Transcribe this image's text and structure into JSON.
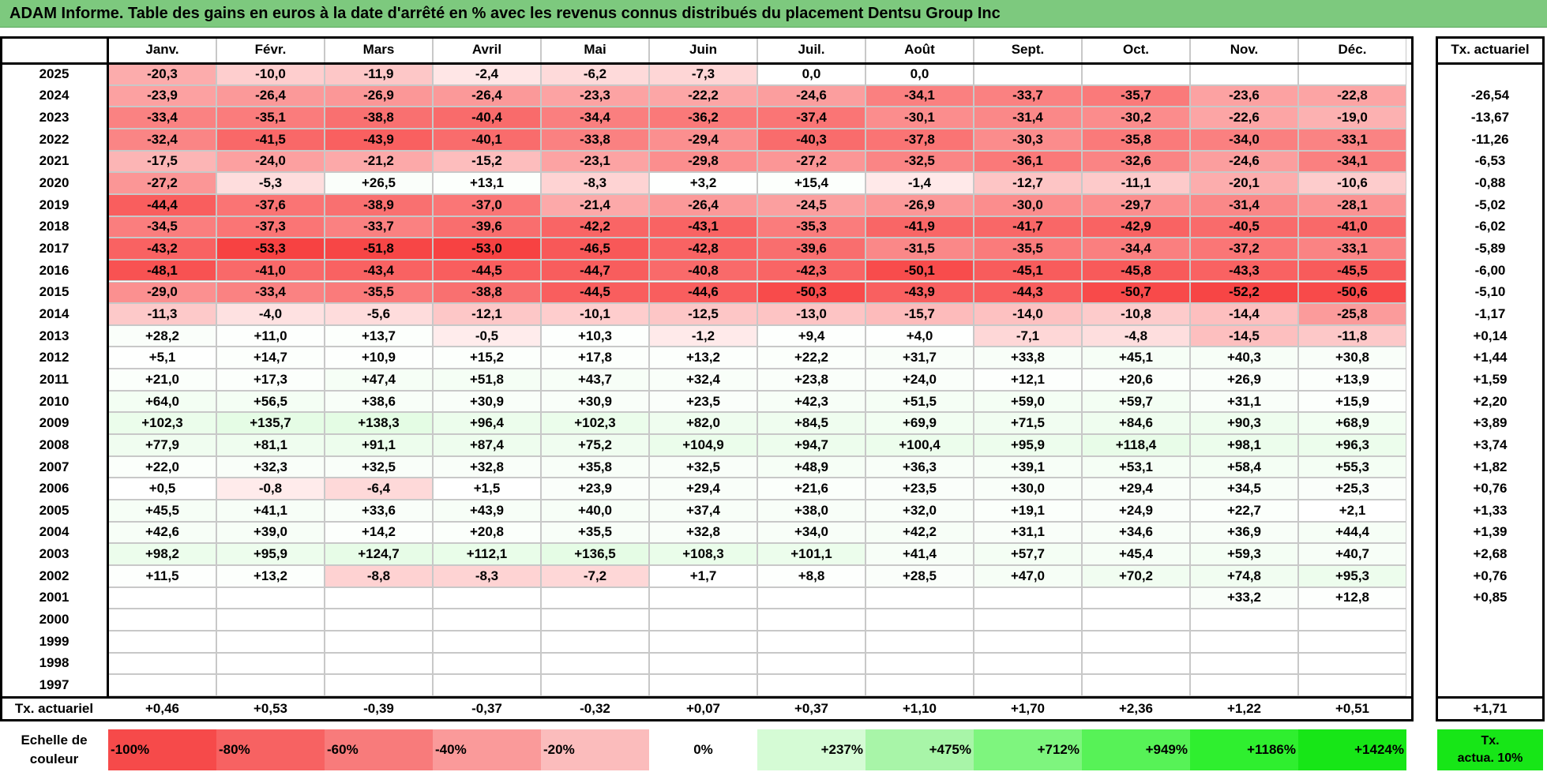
{
  "title": "ADAM Informe. Table des gains en euros à la date d'arrêté en % avec les revenus connus distribués du placement Dentsu Group Inc",
  "chart_data": {
    "type": "heatmap",
    "months": [
      "Janv.",
      "Févr.",
      "Mars",
      "Avril",
      "Mai",
      "Juin",
      "Juil.",
      "Août",
      "Sept.",
      "Oct.",
      "Nov.",
      "Déc."
    ],
    "annual_header": "Tx. actuariel",
    "rows": [
      {
        "year": "2025",
        "values": [
          "-20,3",
          "-10,0",
          "-11,9",
          "-2,4",
          "-6,2",
          "-7,3",
          "0,0",
          "0,0",
          "",
          "",
          "",
          ""
        ],
        "annual": ""
      },
      {
        "year": "2024",
        "values": [
          "-23,9",
          "-26,4",
          "-26,9",
          "-26,4",
          "-23,3",
          "-22,2",
          "-24,6",
          "-34,1",
          "-33,7",
          "-35,7",
          "-23,6",
          "-22,8"
        ],
        "annual": "-26,54"
      },
      {
        "year": "2023",
        "values": [
          "-33,4",
          "-35,1",
          "-38,8",
          "-40,4",
          "-34,4",
          "-36,2",
          "-37,4",
          "-30,1",
          "-31,4",
          "-30,2",
          "-22,6",
          "-19,0"
        ],
        "annual": "-13,67"
      },
      {
        "year": "2022",
        "values": [
          "-32,4",
          "-41,5",
          "-43,9",
          "-40,1",
          "-33,8",
          "-29,4",
          "-40,3",
          "-37,8",
          "-30,3",
          "-35,8",
          "-34,0",
          "-33,1"
        ],
        "annual": "-11,26"
      },
      {
        "year": "2021",
        "values": [
          "-17,5",
          "-24,0",
          "-21,2",
          "-15,2",
          "-23,1",
          "-29,8",
          "-27,2",
          "-32,5",
          "-36,1",
          "-32,6",
          "-24,6",
          "-34,1"
        ],
        "annual": "-6,53"
      },
      {
        "year": "2020",
        "values": [
          "-27,2",
          "-5,3",
          "+26,5",
          "+13,1",
          "-8,3",
          "+3,2",
          "+15,4",
          "-1,4",
          "-12,7",
          "-11,1",
          "-20,1",
          "-10,6"
        ],
        "annual": "-0,88"
      },
      {
        "year": "2019",
        "values": [
          "-44,4",
          "-37,6",
          "-38,9",
          "-37,0",
          "-21,4",
          "-26,4",
          "-24,5",
          "-26,9",
          "-30,0",
          "-29,7",
          "-31,4",
          "-28,1"
        ],
        "annual": "-5,02"
      },
      {
        "year": "2018",
        "values": [
          "-34,5",
          "-37,3",
          "-33,7",
          "-39,6",
          "-42,2",
          "-43,1",
          "-35,3",
          "-41,9",
          "-41,7",
          "-42,9",
          "-40,5",
          "-41,0"
        ],
        "annual": "-6,02"
      },
      {
        "year": "2017",
        "values": [
          "-43,2",
          "-53,3",
          "-51,8",
          "-53,0",
          "-46,5",
          "-42,8",
          "-39,6",
          "-31,5",
          "-35,5",
          "-34,4",
          "-37,2",
          "-33,1"
        ],
        "annual": "-5,89"
      },
      {
        "year": "2016",
        "values": [
          "-48,1",
          "-41,0",
          "-43,4",
          "-44,5",
          "-44,7",
          "-40,8",
          "-42,3",
          "-50,1",
          "-45,1",
          "-45,8",
          "-43,3",
          "-45,5"
        ],
        "annual": "-6,00"
      },
      {
        "year": "2015",
        "values": [
          "-29,0",
          "-33,4",
          "-35,5",
          "-38,8",
          "-44,5",
          "-44,6",
          "-50,3",
          "-43,9",
          "-44,3",
          "-50,7",
          "-52,2",
          "-50,6"
        ],
        "annual": "-5,10"
      },
      {
        "year": "2014",
        "values": [
          "-11,3",
          "-4,0",
          "-5,6",
          "-12,1",
          "-10,1",
          "-12,5",
          "-13,0",
          "-15,7",
          "-14,0",
          "-10,8",
          "-14,4",
          "-25,8"
        ],
        "annual": "-1,17"
      },
      {
        "year": "2013",
        "values": [
          "+28,2",
          "+11,0",
          "+13,7",
          "-0,5",
          "+10,3",
          "-1,2",
          "+9,4",
          "+4,0",
          "-7,1",
          "-4,8",
          "-14,5",
          "-11,8"
        ],
        "annual": "+0,14"
      },
      {
        "year": "2012",
        "values": [
          "+5,1",
          "+14,7",
          "+10,9",
          "+15,2",
          "+17,8",
          "+13,2",
          "+22,2",
          "+31,7",
          "+33,8",
          "+45,1",
          "+40,3",
          "+30,8"
        ],
        "annual": "+1,44"
      },
      {
        "year": "2011",
        "values": [
          "+21,0",
          "+17,3",
          "+47,4",
          "+51,8",
          "+43,7",
          "+32,4",
          "+23,8",
          "+24,0",
          "+12,1",
          "+20,6",
          "+26,9",
          "+13,9"
        ],
        "annual": "+1,59"
      },
      {
        "year": "2010",
        "values": [
          "+64,0",
          "+56,5",
          "+38,6",
          "+30,9",
          "+30,9",
          "+23,5",
          "+42,3",
          "+51,5",
          "+59,0",
          "+59,7",
          "+31,1",
          "+15,9"
        ],
        "annual": "+2,20"
      },
      {
        "year": "2009",
        "values": [
          "+102,3",
          "+135,7",
          "+138,3",
          "+96,4",
          "+102,3",
          "+82,0",
          "+84,5",
          "+69,9",
          "+71,5",
          "+84,6",
          "+90,3",
          "+68,9"
        ],
        "annual": "+3,89"
      },
      {
        "year": "2008",
        "values": [
          "+77,9",
          "+81,1",
          "+91,1",
          "+87,4",
          "+75,2",
          "+104,9",
          "+94,7",
          "+100,4",
          "+95,9",
          "+118,4",
          "+98,1",
          "+96,3"
        ],
        "annual": "+3,74"
      },
      {
        "year": "2007",
        "values": [
          "+22,0",
          "+32,3",
          "+32,5",
          "+32,8",
          "+35,8",
          "+32,5",
          "+48,9",
          "+36,3",
          "+39,1",
          "+53,1",
          "+58,4",
          "+55,3"
        ],
        "annual": "+1,82"
      },
      {
        "year": "2006",
        "values": [
          "+0,5",
          "-0,8",
          "-6,4",
          "+1,5",
          "+23,9",
          "+29,4",
          "+21,6",
          "+23,5",
          "+30,0",
          "+29,4",
          "+34,5",
          "+25,3"
        ],
        "annual": "+0,76"
      },
      {
        "year": "2005",
        "values": [
          "+45,5",
          "+41,1",
          "+33,6",
          "+43,9",
          "+40,0",
          "+37,4",
          "+38,0",
          "+32,0",
          "+19,1",
          "+24,9",
          "+22,7",
          "+2,1"
        ],
        "annual": "+1,33"
      },
      {
        "year": "2004",
        "values": [
          "+42,6",
          "+39,0",
          "+14,2",
          "+20,8",
          "+35,5",
          "+32,8",
          "+34,0",
          "+42,2",
          "+31,1",
          "+34,6",
          "+36,9",
          "+44,4"
        ],
        "annual": "+1,39"
      },
      {
        "year": "2003",
        "values": [
          "+98,2",
          "+95,9",
          "+124,7",
          "+112,1",
          "+136,5",
          "+108,3",
          "+101,1",
          "+41,4",
          "+57,7",
          "+45,4",
          "+59,3",
          "+40,7"
        ],
        "annual": "+2,68"
      },
      {
        "year": "2002",
        "values": [
          "+11,5",
          "+13,2",
          "-8,8",
          "-8,3",
          "-7,2",
          "+1,7",
          "+8,8",
          "+28,5",
          "+47,0",
          "+70,2",
          "+74,8",
          "+95,3"
        ],
        "annual": "+0,76"
      },
      {
        "year": "2001",
        "values": [
          "",
          "",
          "",
          "",
          "",
          "",
          "",
          "",
          "",
          "",
          "+33,2",
          "+12,8"
        ],
        "annual": "+0,85"
      },
      {
        "year": "2000",
        "values": [
          "",
          "",
          "",
          "",
          "",
          "",
          "",
          "",
          "",
          "",
          "",
          ""
        ],
        "annual": ""
      },
      {
        "year": "1999",
        "values": [
          "",
          "",
          "",
          "",
          "",
          "",
          "",
          "",
          "",
          "",
          "",
          ""
        ],
        "annual": ""
      },
      {
        "year": "1998",
        "values": [
          "",
          "",
          "",
          "",
          "",
          "",
          "",
          "",
          "",
          "",
          "",
          ""
        ],
        "annual": ""
      },
      {
        "year": "1997",
        "values": [
          "",
          "",
          "",
          "",
          "",
          "",
          "",
          "",
          "",
          "",
          "",
          ""
        ],
        "annual": ""
      }
    ],
    "footer": {
      "label": "Tx. actuariel",
      "values": [
        "+0,46",
        "+0,53",
        "-0,39",
        "-0,37",
        "-0,32",
        "+0,07",
        "+0,37",
        "+1,10",
        "+1,70",
        "+2,36",
        "+1,22",
        "+0,51"
      ],
      "annual": "+1,71"
    },
    "legend": {
      "label_line1": "Echelle de",
      "label_line2": "couleur",
      "entries": [
        "-100%",
        "-80%",
        "-60%",
        "-40%",
        "-20%",
        "0%",
        "+237%",
        "+475%",
        "+712%",
        "+949%",
        "+1186%",
        "+1424%"
      ],
      "entry_colors": [
        "#f64a4a",
        "#f76262",
        "#f87b7b",
        "#fa9a9a",
        "#fbbcbc",
        "#ffffff",
        "#d5fbd5",
        "#a8f5a8",
        "#7ef57e",
        "#57f257",
        "#2fef2f",
        "#17e617"
      ],
      "annual_line1": "Tx.",
      "annual_line2": "actua. 10%",
      "annual_color": "#17e617"
    }
  }
}
